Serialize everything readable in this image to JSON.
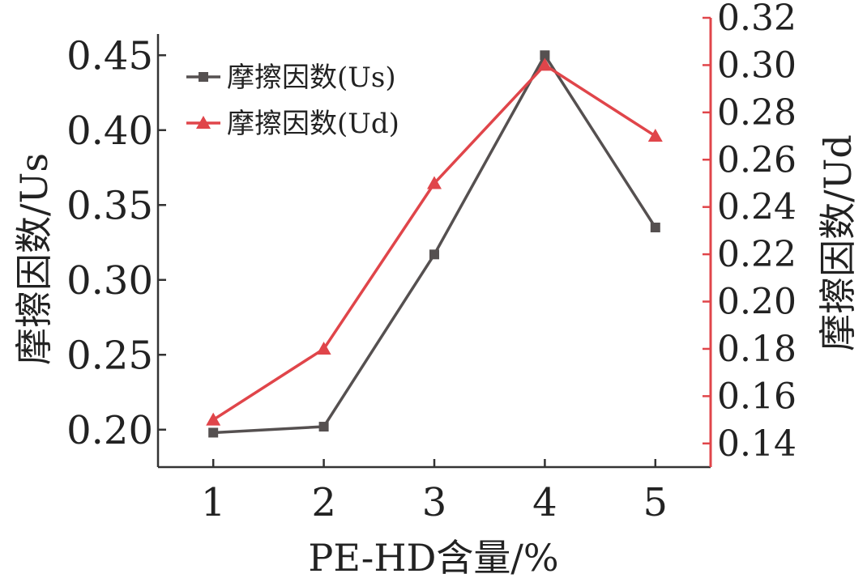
{
  "chart_data": {
    "type": "line",
    "x": [
      1,
      2,
      3,
      4,
      5
    ],
    "xlabel": "PE-HD含量/%",
    "xticks": [
      "1",
      "2",
      "3",
      "4",
      "5"
    ],
    "y_left": {
      "label": "摩擦因数/Us",
      "lim": [
        0.175,
        0.475
      ],
      "ticks": [
        "0.20",
        "0.25",
        "0.30",
        "0.35",
        "0.40",
        "0.45"
      ],
      "tick_values": [
        0.2,
        0.25,
        0.3,
        0.35,
        0.4,
        0.45
      ]
    },
    "y_right": {
      "label": "摩擦因数/Ud",
      "lim": [
        0.13,
        0.32
      ],
      "ticks": [
        "0.14",
        "0.16",
        "0.18",
        "0.20",
        "0.22",
        "0.24",
        "0.26",
        "0.28",
        "0.30",
        "0.32"
      ],
      "tick_values": [
        0.14,
        0.16,
        0.18,
        0.2,
        0.22,
        0.24,
        0.26,
        0.28,
        0.3,
        0.32
      ]
    },
    "series": [
      {
        "name": "摩擦因数(Us)",
        "axis": "left",
        "marker": "square",
        "color": "#555050",
        "values": [
          0.198,
          0.202,
          0.317,
          0.45,
          0.335
        ]
      },
      {
        "name": "摩擦因数(Ud)",
        "axis": "right",
        "marker": "triangle",
        "color": "#e0454a",
        "values": [
          0.15,
          0.18,
          0.25,
          0.3,
          0.27
        ]
      }
    ],
    "legend": "top-left",
    "grid": false,
    "right_axis_color": "#e0454a"
  }
}
